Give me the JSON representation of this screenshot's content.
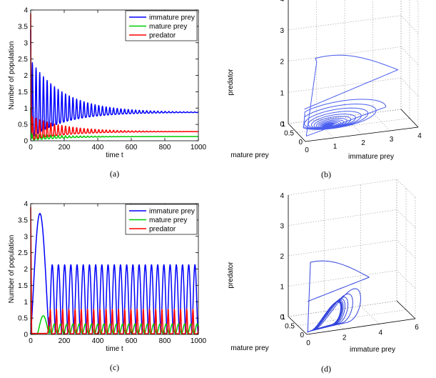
{
  "chart_data": [
    {
      "id": "a",
      "type": "line",
      "caption": "(a)",
      "xlabel": "time t",
      "ylabel": "Number of population",
      "xlim": [
        0,
        1000
      ],
      "ylim": [
        0,
        4
      ],
      "xticks": [
        "0",
        "200",
        "400",
        "600",
        "800",
        "1000"
      ],
      "yticks": [
        "0",
        "0.5",
        "1",
        "1.5",
        "2",
        "2.5",
        "3",
        "3.5",
        "4"
      ],
      "legend": [
        "immature prey",
        "mature prey",
        "predator"
      ],
      "legend_position": "top-right",
      "series": [
        {
          "name": "immature prey",
          "color": "#0000ff",
          "start": 3.4,
          "mean": 0.85,
          "amplitude": 2.3,
          "period": 22,
          "decay": 200
        },
        {
          "name": "mature prey",
          "color": "#00cc00",
          "start": 1.0,
          "mean": 0.12,
          "amplitude": 0.18,
          "period": 22,
          "decay": 200
        },
        {
          "name": "predator",
          "color": "#ff0000",
          "start": 3.9,
          "mean": 0.27,
          "amplitude": 0.7,
          "period": 22,
          "decay": 200
        }
      ]
    },
    {
      "id": "b",
      "type": "line3d",
      "caption": "(b)",
      "xlabel": "immature prey",
      "ylabel": "mature prey",
      "zlabel": "predator",
      "xlim": [
        0,
        4
      ],
      "ylim": [
        0,
        1
      ],
      "zlim": [
        0,
        4
      ],
      "xticks": [
        "0",
        "1",
        "2",
        "3",
        "4"
      ],
      "yticks": [
        "0",
        "0.5",
        "1"
      ],
      "zticks": [
        "0",
        "1",
        "2",
        "3",
        "4"
      ],
      "series": [
        {
          "name": "trajectory",
          "color": "#4a5ef0",
          "converges_to": [
            0.85,
            0.12,
            0.27
          ]
        }
      ]
    },
    {
      "id": "c",
      "type": "line",
      "caption": "(c)",
      "xlabel": "time t",
      "ylabel": "Number of population",
      "xlim": [
        0,
        1000
      ],
      "ylim": [
        0,
        4
      ],
      "xticks": [
        "0",
        "200",
        "400",
        "600",
        "800",
        "1000"
      ],
      "yticks": [
        "0",
        "0.5",
        "1",
        "1.5",
        "2",
        "2.5",
        "3",
        "3.5",
        "4"
      ],
      "legend": [
        "immature prey",
        "mature prey",
        "predator"
      ],
      "legend_position": "top-right",
      "series": [
        {
          "name": "immature prey",
          "color": "#0000ff",
          "first_peak": 3.7,
          "peak": 2.1,
          "period": 37
        },
        {
          "name": "mature prey",
          "color": "#00cc00",
          "first_peak": 0.55,
          "peak": 0.3,
          "period": 37
        },
        {
          "name": "predator",
          "color": "#ff0000",
          "start": 3.85,
          "peak": 0.75,
          "period": 37
        }
      ]
    },
    {
      "id": "d",
      "type": "line3d",
      "caption": "(d)",
      "xlabel": "immature prey",
      "ylabel": "mature prey",
      "zlabel": "predator",
      "xlim": [
        0,
        6
      ],
      "ylim": [
        0,
        1
      ],
      "zlim": [
        0,
        4
      ],
      "xticks": [
        "0",
        "2",
        "4",
        "6"
      ],
      "yticks": [
        "0",
        "0.5",
        "1"
      ],
      "zticks": [
        "0",
        "1",
        "2",
        "3",
        "4"
      ],
      "series": [
        {
          "name": "trajectory",
          "color": "#3344dd",
          "behavior": "limit cycle"
        }
      ]
    }
  ]
}
